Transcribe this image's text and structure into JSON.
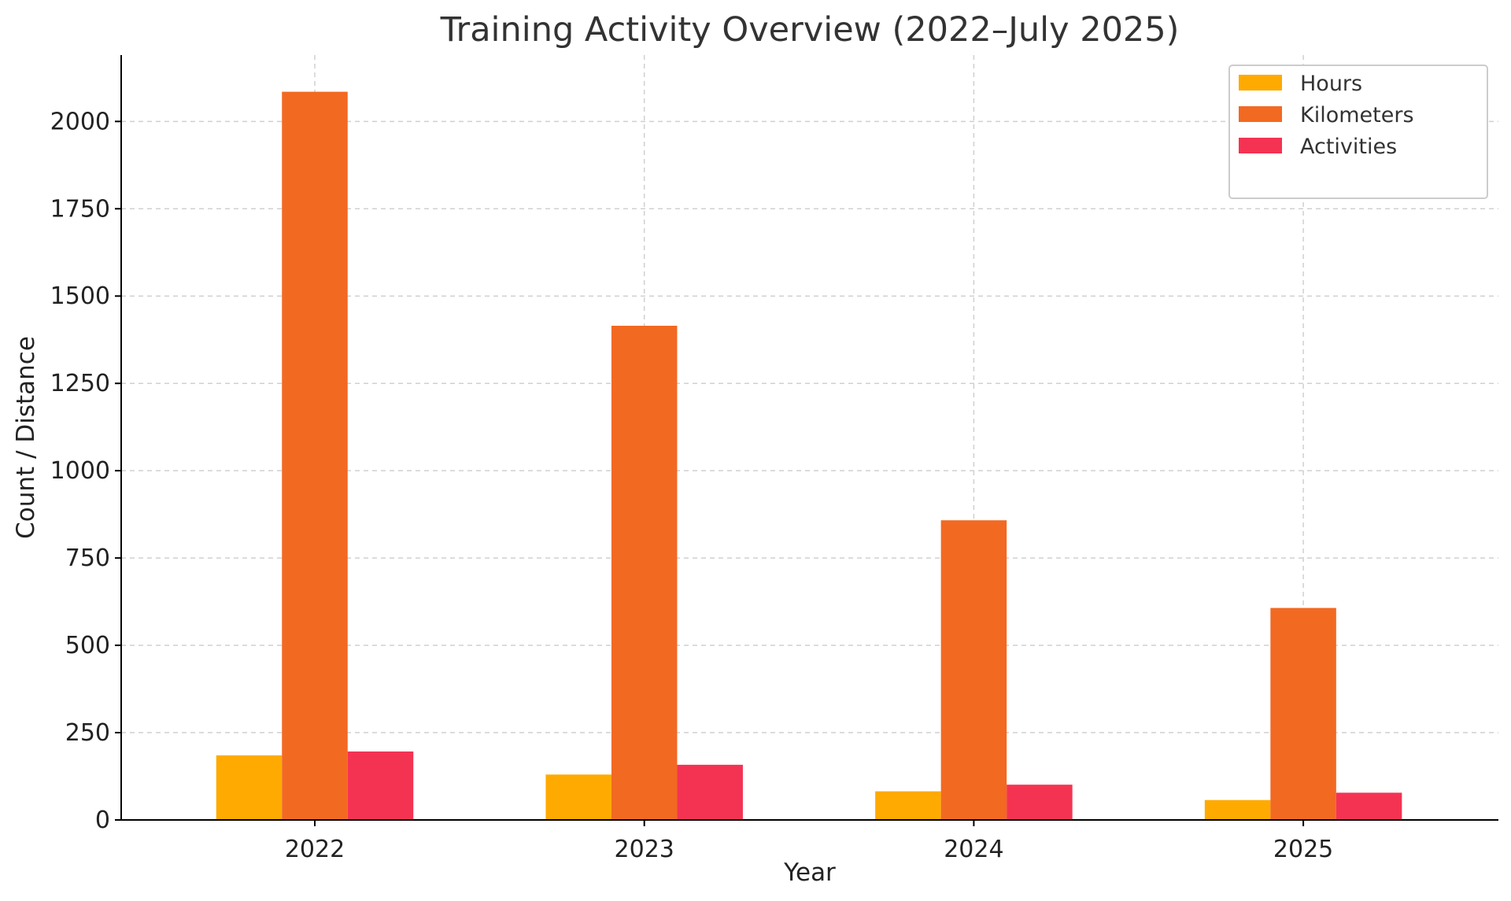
{
  "chart_data": {
    "type": "bar",
    "title": "Training Activity Overview (2022–July 2025)",
    "xlabel": "Year",
    "ylabel": "Count / Distance",
    "categories": [
      "2022",
      "2023",
      "2024",
      "2025"
    ],
    "series": [
      {
        "name": "Hours",
        "color": "#FFAA00",
        "values": [
          185,
          130,
          82,
          57
        ]
      },
      {
        "name": "Kilometers",
        "color": "#F26922",
        "values": [
          2085,
          1415,
          858,
          607
        ]
      },
      {
        "name": "Activities",
        "color": "#F43353",
        "values": [
          196,
          158,
          101,
          78
        ]
      }
    ],
    "ylim": [
      0,
      2190
    ],
    "yticks": [
      0,
      250,
      500,
      750,
      1000,
      1250,
      1500,
      1750,
      2000
    ],
    "grid": true,
    "legend_position": "top-right"
  }
}
